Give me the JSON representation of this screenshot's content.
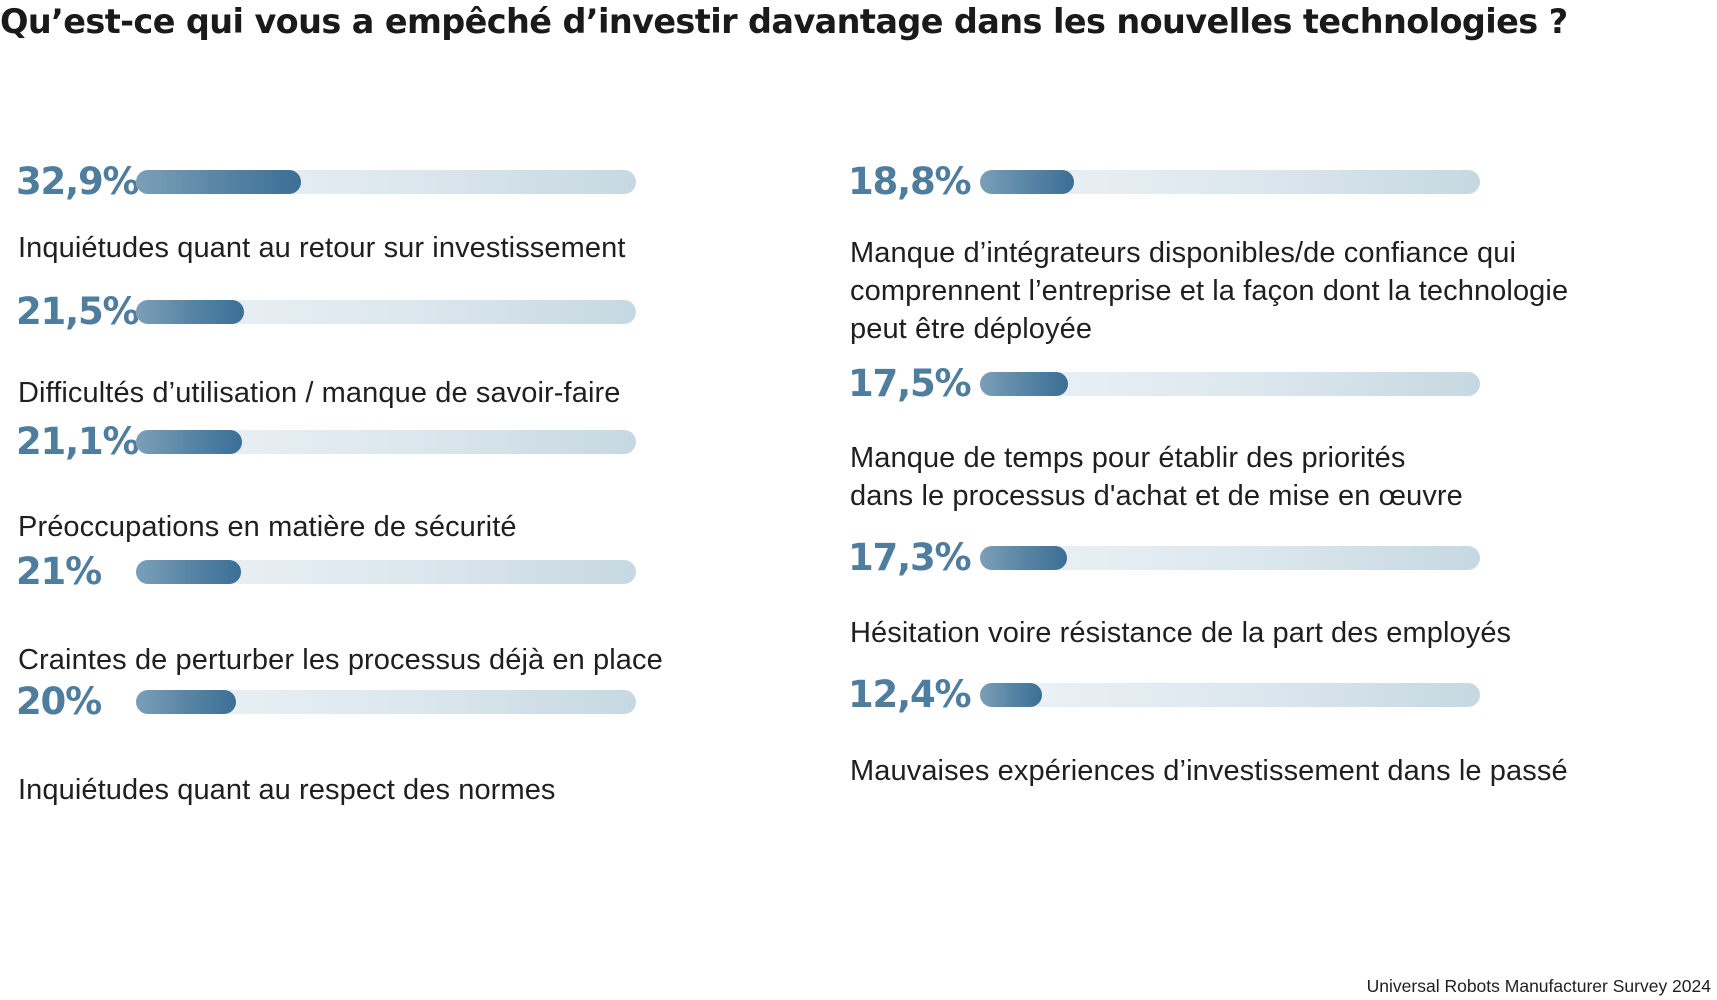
{
  "chart_data": {
    "type": "bar",
    "title": "Qu’est-ce qui vous a empêché d’investir davantage dans les nouvelles technologies ?",
    "source": "Universal Robots Manufacturer Survey 2024",
    "xlim": [
      0,
      100
    ],
    "unit": "%",
    "accent_colors": {
      "value_text": "#4f7d9d",
      "bar_fill_start": "#7c9fb7",
      "bar_fill_end": "#3b6f96",
      "track_start": "#eef3f6",
      "track_end": "#c6d8e1"
    },
    "items": [
      {
        "value": 32.9,
        "value_label": "32,9%",
        "label_lines": [
          "Inquiétudes quant au retour sur investissement"
        ]
      },
      {
        "value": 21.5,
        "value_label": "21,5%",
        "label_lines": [
          "Difficultés d’utilisation / manque de savoir-faire"
        ]
      },
      {
        "value": 21.1,
        "value_label": "21,1%",
        "label_lines": [
          "Préoccupations en matière de sécurité"
        ]
      },
      {
        "value": 21,
        "value_label": "21%",
        "label_lines": [
          "Craintes de perturber les processus déjà en place"
        ]
      },
      {
        "value": 20,
        "value_label": "20%",
        "label_lines": [
          "Inquiétudes quant au respect des normes"
        ]
      },
      {
        "value": 18.8,
        "value_label": "18,8%",
        "label_lines": [
          "Manque d’intégrateurs disponibles/de confiance qui",
          "comprennent l’entreprise et la façon dont la technologie",
          "peut être déployée"
        ]
      },
      {
        "value": 17.5,
        "value_label": "17,5%",
        "label_lines": [
          "Manque de temps pour établir des priorités",
          "dans le processus d'achat et de mise en œuvre"
        ]
      },
      {
        "value": 17.3,
        "value_label": "17,3%",
        "label_lines": [
          "Hésitation voire résistance de la part des employés"
        ]
      },
      {
        "value": 12.4,
        "value_label": "12,4%",
        "label_lines": [
          "Mauvaises expériences d’investissement dans le passé"
        ]
      }
    ]
  }
}
